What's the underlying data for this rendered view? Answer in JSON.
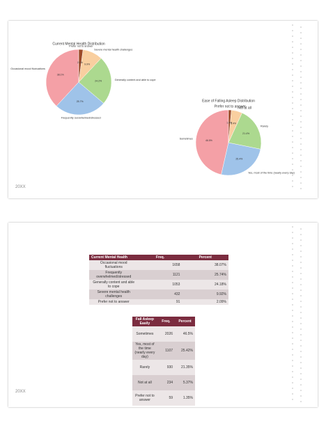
{
  "chart_data": [
    {
      "type": "pie",
      "title": "Current Mental Health Distribution",
      "categories": [
        "Occasional mood fluctuations",
        "Frequently overwhelmed/stressed",
        "Generally content and able to cope",
        "Severe mental health challenges",
        "Prefer not to answer"
      ],
      "values": [
        38.1,
        25.7,
        24.2,
        9.9,
        2.1
      ],
      "value_labels": [
        "38.1%",
        "25.7%",
        "24.2%",
        "9.9%",
        "2.1%"
      ],
      "colors": [
        "#f4a0a6",
        "#9fc3e9",
        "#acd98f",
        "#f9cfa0",
        "#9c4a28"
      ]
    },
    {
      "type": "pie",
      "title": "Ease of Falling Asleep Distribution",
      "categories": [
        "Sometimes",
        "Yes, most of the time (nearly every day)",
        "Rarely",
        "Not at all",
        "Prefer not to answer"
      ],
      "values": [
        46.5,
        25.4,
        21.4,
        5.4,
        1.4
      ],
      "value_labels": [
        "46.5%",
        "25.4%",
        "21.4%",
        "5.4%",
        "1.4%"
      ],
      "colors": [
        "#f4a0a6",
        "#9fc3e9",
        "#acd98f",
        "#f9cfa0",
        "#9c4a28"
      ]
    }
  ],
  "tables": [
    {
      "header": [
        "Current Mental Health",
        "Freq.",
        "Percent"
      ],
      "rows": [
        [
          "Occasional mood fluctuations",
          "1658",
          "38.07%"
        ],
        [
          "Frequently overwhelmed/stressed",
          "1121",
          "25.74%"
        ],
        [
          "Generally content and able to cope",
          "1053",
          "24.18%"
        ],
        [
          "Severe mental health challenges",
          "432",
          "9.92%"
        ],
        [
          "Prefer not to answer",
          "91",
          "2.09%"
        ]
      ]
    },
    {
      "header": [
        "Fall Asleep Easily",
        "Freq.",
        "Percent"
      ],
      "rows": [
        [
          "Sometimes",
          "2026",
          "46.5%"
        ],
        [
          "Yes, most of the time (nearly every day)",
          "1107",
          "25.42%"
        ],
        [
          "Rarely",
          "930",
          "21.35%"
        ],
        [
          "Not at all",
          "234",
          "5.37%"
        ],
        [
          "Prefer not to answer",
          "59",
          "1.35%"
        ]
      ]
    }
  ],
  "footers": [
    "20XX",
    "20XX"
  ]
}
